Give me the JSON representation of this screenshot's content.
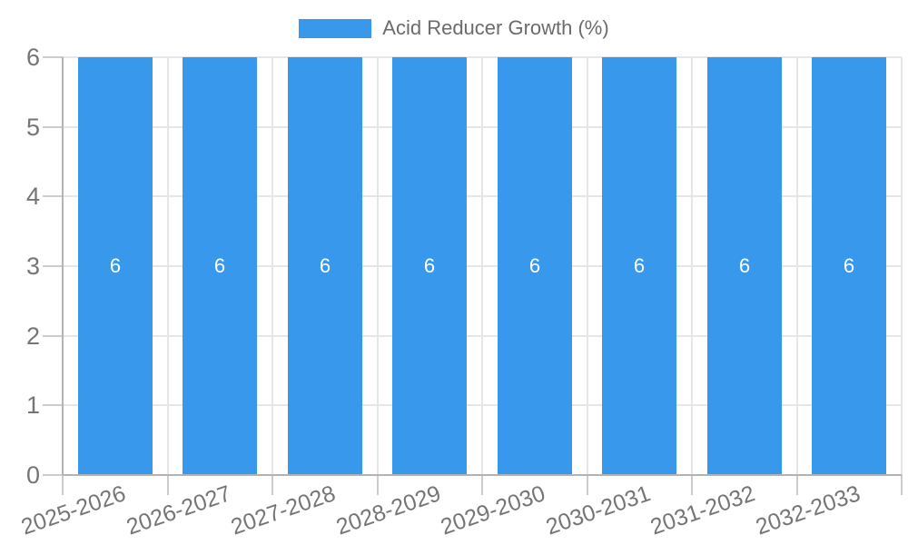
{
  "legend": {
    "label": "Acid Reducer Growth (%)",
    "position": "top"
  },
  "chart_data": {
    "type": "bar",
    "title": "",
    "xlabel": "",
    "ylabel": "",
    "categories": [
      "2025-2026",
      "2026-2027",
      "2027-2028",
      "2028-2029",
      "2029-2030",
      "2030-2031",
      "2031-2032",
      "2032-2033"
    ],
    "series": [
      {
        "name": "Acid Reducer Growth (%)",
        "values": [
          6,
          6,
          6,
          6,
          6,
          6,
          6,
          6
        ],
        "color": "#3898ec"
      }
    ],
    "bar_value_labels": [
      "6",
      "6",
      "6",
      "6",
      "6",
      "6",
      "6",
      "6"
    ],
    "ylim": [
      0,
      6
    ],
    "yticks": [
      "0",
      "1",
      "2",
      "3",
      "4",
      "5",
      "6"
    ],
    "grid": true,
    "legend_position": "top",
    "x_label_rotation_deg": -19,
    "colors": {
      "bar": "#3898ec",
      "bar_label": "#ffffff",
      "axis_text": "#757575",
      "legend_text": "#6b6b6b",
      "gridline": "#e6e6e6",
      "axis_line": "#b3b3b3",
      "tick": "#cccccc",
      "background": "#ffffff"
    }
  }
}
